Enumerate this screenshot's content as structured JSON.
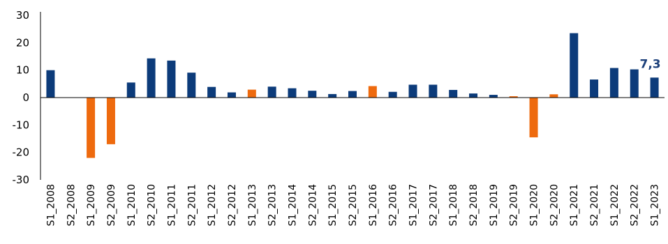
{
  "chart_data": {
    "type": "bar",
    "title": "",
    "xlabel": "",
    "ylabel": "",
    "ylim": [
      -30,
      30
    ],
    "yticks": [
      -30,
      -20,
      -10,
      0,
      10,
      20,
      30
    ],
    "grid": false,
    "legend": "none",
    "categories": [
      "S1_2008",
      "S2_2008",
      "S1_2009",
      "S2_2009",
      "S1_2010",
      "S2_2010",
      "S1_2011",
      "S2_2011",
      "S1_2012",
      "S2_2012",
      "S1_2013",
      "S2_2013",
      "S1_2014",
      "S2_2014",
      "S1_2015",
      "S2_2015",
      "S1_2016",
      "S2_2016",
      "S1_2017",
      "S2_2017",
      "S1_2018",
      "S2_2018",
      "S1_2019",
      "S2_2019",
      "S1_2020",
      "S2_2020",
      "S1_2021",
      "S2_2021",
      "S1_2022",
      "S2_2022",
      "S1_2023"
    ],
    "values": [
      10.0,
      0,
      -22.0,
      -17.0,
      5.5,
      14.3,
      13.5,
      9.1,
      3.9,
      1.9,
      2.9,
      4.0,
      3.4,
      2.5,
      1.3,
      2.4,
      4.2,
      2.1,
      4.7,
      4.7,
      2.8,
      1.5,
      1.0,
      0.5,
      -14.5,
      1.2,
      23.5,
      6.6,
      10.8,
      10.3,
      7.3
    ],
    "highlight": [
      false,
      false,
      true,
      true,
      false,
      false,
      false,
      false,
      false,
      false,
      true,
      false,
      false,
      false,
      false,
      false,
      true,
      false,
      false,
      false,
      false,
      false,
      false,
      true,
      true,
      true,
      false,
      false,
      false,
      false,
      false
    ],
    "data_labels": [
      {
        "index": 30,
        "text": "7,3"
      }
    ],
    "colors": {
      "primary": "#0c3b7a",
      "highlight": "#ee6a0e",
      "label": "#1b3f7a"
    }
  }
}
